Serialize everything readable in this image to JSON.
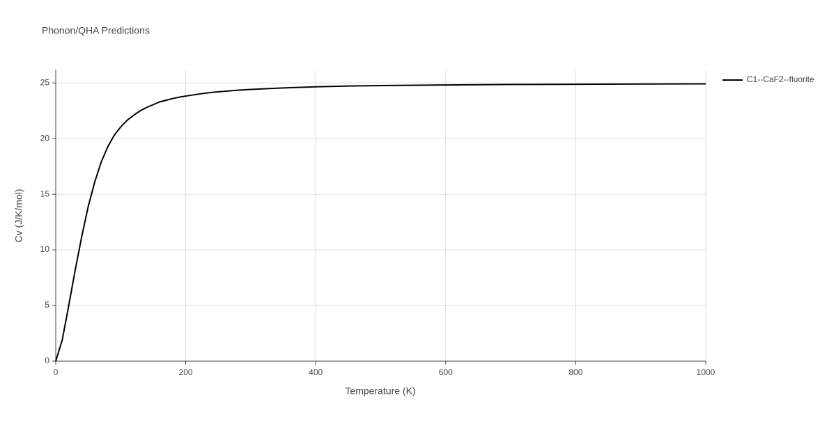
{
  "chart_data": {
    "type": "line",
    "title": "Phonon/QHA Predictions",
    "x_label": "Temperature (K)",
    "y_label": "Cv (J/K/mol)",
    "x": [
      0,
      10,
      20,
      30,
      40,
      50,
      60,
      70,
      80,
      90,
      100,
      110,
      120,
      130,
      140,
      150,
      160,
      170,
      180,
      190,
      200,
      220,
      240,
      260,
      280,
      300,
      350,
      400,
      450,
      500,
      600,
      700,
      800,
      900,
      1000
    ],
    "series": [
      {
        "name": "C1--CaF2--fluorite",
        "color": "#000000",
        "values": [
          0,
          1.9,
          5.0,
          8.2,
          11.2,
          13.9,
          16.1,
          17.9,
          19.25,
          20.3,
          21.05,
          21.65,
          22.1,
          22.5,
          22.8,
          23.05,
          23.3,
          23.45,
          23.6,
          23.72,
          23.82,
          24.0,
          24.15,
          24.25,
          24.35,
          24.42,
          24.55,
          24.65,
          24.72,
          24.76,
          24.82,
          24.86,
          24.88,
          24.9,
          24.92
        ]
      }
    ],
    "xlim": [
      0,
      1000
    ],
    "xticks": [
      0,
      200,
      400,
      600,
      800,
      1000
    ],
    "ylim": [
      0,
      26.2
    ],
    "yticks": [
      0,
      5,
      10,
      15,
      20,
      25
    ],
    "grid": true,
    "legend": "right"
  }
}
